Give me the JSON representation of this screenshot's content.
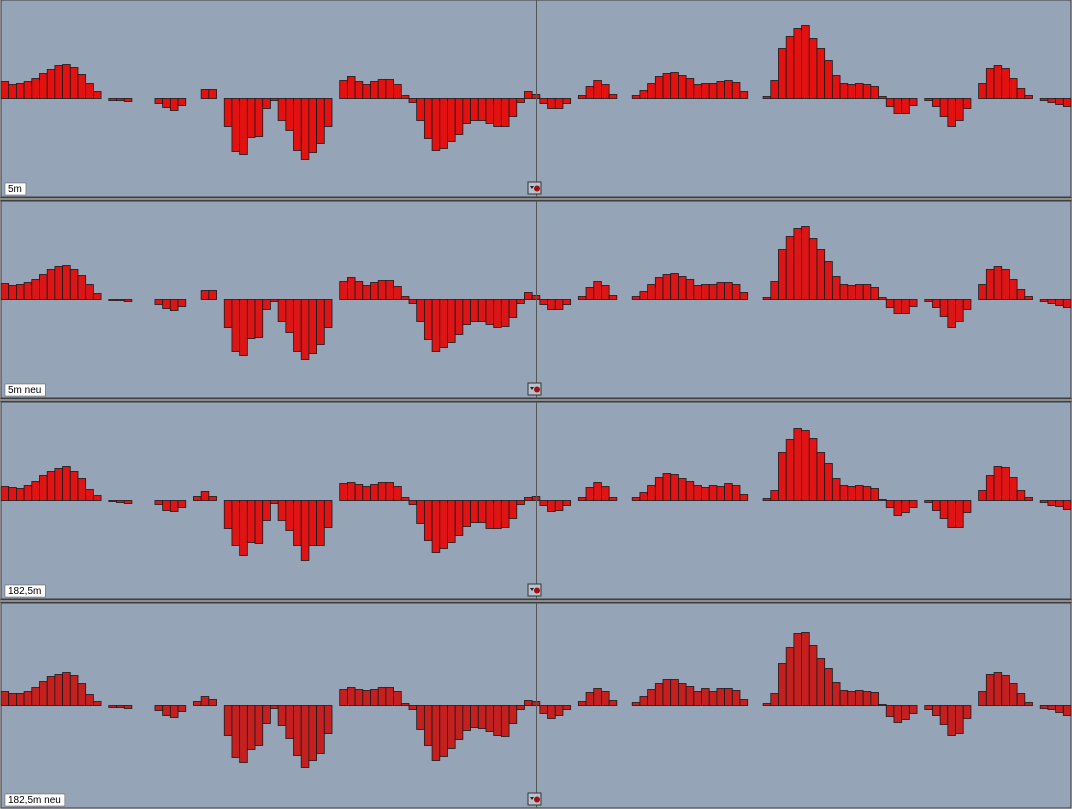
{
  "chart_data": [
    {
      "type": "bar",
      "title": "5m",
      "color": "#e41111",
      "values": [
        17,
        14,
        15,
        17,
        20,
        25,
        29,
        33,
        34,
        31,
        24,
        15,
        7,
        0,
        -2,
        -2,
        -3,
        0,
        0,
        0,
        -5,
        -9,
        -12,
        -7,
        0,
        0,
        9,
        9,
        0,
        -28,
        -53,
        -56,
        -39,
        -38,
        -10,
        -2,
        -22,
        -32,
        -52,
        -61,
        -54,
        -45,
        -28,
        0,
        18,
        22,
        17,
        14,
        17,
        19,
        19,
        14,
        3,
        -4,
        -22,
        -40,
        -52,
        -50,
        -43,
        -36,
        -25,
        -22,
        -22,
        -25,
        -28,
        -28,
        -18,
        -4,
        7,
        4,
        -5,
        -10,
        -10,
        -5,
        0,
        3,
        12,
        18,
        14,
        4,
        0,
        0,
        3,
        8,
        15,
        22,
        25,
        26,
        23,
        20,
        14,
        15,
        15,
        17,
        18,
        16,
        7,
        0,
        0,
        2,
        18,
        50,
        62,
        70,
        73,
        60,
        50,
        38,
        23,
        15,
        14,
        15,
        14,
        12,
        2,
        -8,
        -15,
        -15,
        -7,
        0,
        -2,
        -8,
        -18,
        -28,
        -22,
        -10,
        0,
        15,
        30,
        33,
        30,
        20,
        10,
        3,
        0,
        -2,
        -4,
        -6,
        -8
      ]
    },
    {
      "type": "bar",
      "title": "5m neu",
      "color": "#dc1616",
      "values": [
        16,
        14,
        15,
        17,
        20,
        25,
        30,
        33,
        34,
        30,
        24,
        15,
        6,
        0,
        -1,
        -1,
        -2,
        0,
        0,
        0,
        -5,
        -9,
        -11,
        -7,
        0,
        0,
        9,
        9,
        0,
        -28,
        -52,
        -56,
        -39,
        -38,
        -10,
        -2,
        -22,
        -33,
        -52,
        -60,
        -54,
        -45,
        -28,
        0,
        18,
        22,
        18,
        14,
        17,
        19,
        19,
        13,
        3,
        -4,
        -22,
        -40,
        -52,
        -48,
        -43,
        -35,
        -25,
        -22,
        -22,
        -25,
        -28,
        -27,
        -18,
        -4,
        7,
        4,
        -5,
        -10,
        -10,
        -5,
        0,
        3,
        12,
        18,
        14,
        4,
        0,
        0,
        3,
        8,
        15,
        22,
        25,
        26,
        23,
        20,
        14,
        15,
        15,
        17,
        17,
        15,
        7,
        0,
        0,
        2,
        18,
        50,
        63,
        71,
        73,
        61,
        50,
        38,
        23,
        15,
        14,
        15,
        15,
        12,
        2,
        -8,
        -14,
        -14,
        -7,
        0,
        -2,
        -8,
        -17,
        -28,
        -22,
        -10,
        0,
        15,
        30,
        33,
        30,
        20,
        10,
        3,
        0,
        -2,
        -4,
        -6,
        -8
      ]
    },
    {
      "type": "bar",
      "title": "182,5m",
      "color": "#e01414",
      "values": [
        14,
        13,
        12,
        15,
        19,
        25,
        29,
        32,
        34,
        29,
        22,
        11,
        5,
        0,
        -1,
        -2,
        -3,
        0,
        0,
        0,
        -4,
        -10,
        -11,
        -7,
        0,
        4,
        9,
        4,
        0,
        -28,
        -45,
        -55,
        -42,
        -43,
        -20,
        -3,
        -20,
        -30,
        -45,
        -60,
        -45,
        -45,
        -27,
        0,
        17,
        18,
        16,
        14,
        16,
        18,
        18,
        14,
        3,
        -4,
        -23,
        -40,
        -52,
        -48,
        -42,
        -35,
        -26,
        -22,
        -22,
        -28,
        -28,
        -27,
        -18,
        -4,
        3,
        4,
        -5,
        -11,
        -10,
        -5,
        0,
        3,
        13,
        18,
        14,
        3,
        0,
        0,
        3,
        8,
        15,
        23,
        27,
        26,
        22,
        19,
        15,
        13,
        15,
        14,
        17,
        15,
        6,
        0,
        0,
        2,
        10,
        48,
        61,
        72,
        70,
        62,
        48,
        37,
        22,
        15,
        14,
        15,
        14,
        12,
        1,
        -7,
        -15,
        -12,
        -7,
        0,
        -2,
        -10,
        -18,
        -27,
        -27,
        -12,
        0,
        10,
        25,
        34,
        33,
        23,
        10,
        3,
        0,
        -2,
        -5,
        -6,
        -9
      ]
    },
    {
      "type": "bar",
      "title": "182,5m neu",
      "color": "#c42020",
      "values": [
        14,
        12,
        12,
        14,
        18,
        24,
        29,
        31,
        33,
        30,
        22,
        11,
        4,
        0,
        -2,
        -2,
        -3,
        0,
        0,
        0,
        -5,
        -10,
        -12,
        -6,
        0,
        4,
        9,
        6,
        0,
        -30,
        -52,
        -57,
        -44,
        -40,
        -18,
        -3,
        -20,
        -33,
        -50,
        -62,
        -55,
        -48,
        -28,
        0,
        16,
        18,
        16,
        15,
        16,
        18,
        18,
        14,
        2,
        -4,
        -24,
        -40,
        -55,
        -51,
        -43,
        -34,
        -25,
        -22,
        -23,
        -26,
        -30,
        -31,
        -18,
        -4,
        5,
        4,
        -8,
        -13,
        -10,
        -4,
        0,
        4,
        13,
        17,
        14,
        5,
        0,
        0,
        3,
        9,
        16,
        22,
        26,
        26,
        22,
        19,
        14,
        17,
        14,
        17,
        17,
        15,
        6,
        0,
        0,
        2,
        12,
        42,
        58,
        72,
        73,
        60,
        47,
        37,
        23,
        15,
        14,
        15,
        14,
        13,
        1,
        -11,
        -17,
        -14,
        -8,
        0,
        -4,
        -10,
        -19,
        -30,
        -28,
        -13,
        0,
        14,
        31,
        33,
        30,
        22,
        12,
        3,
        0,
        -3,
        -4,
        -7,
        -10
      ]
    }
  ]
}
